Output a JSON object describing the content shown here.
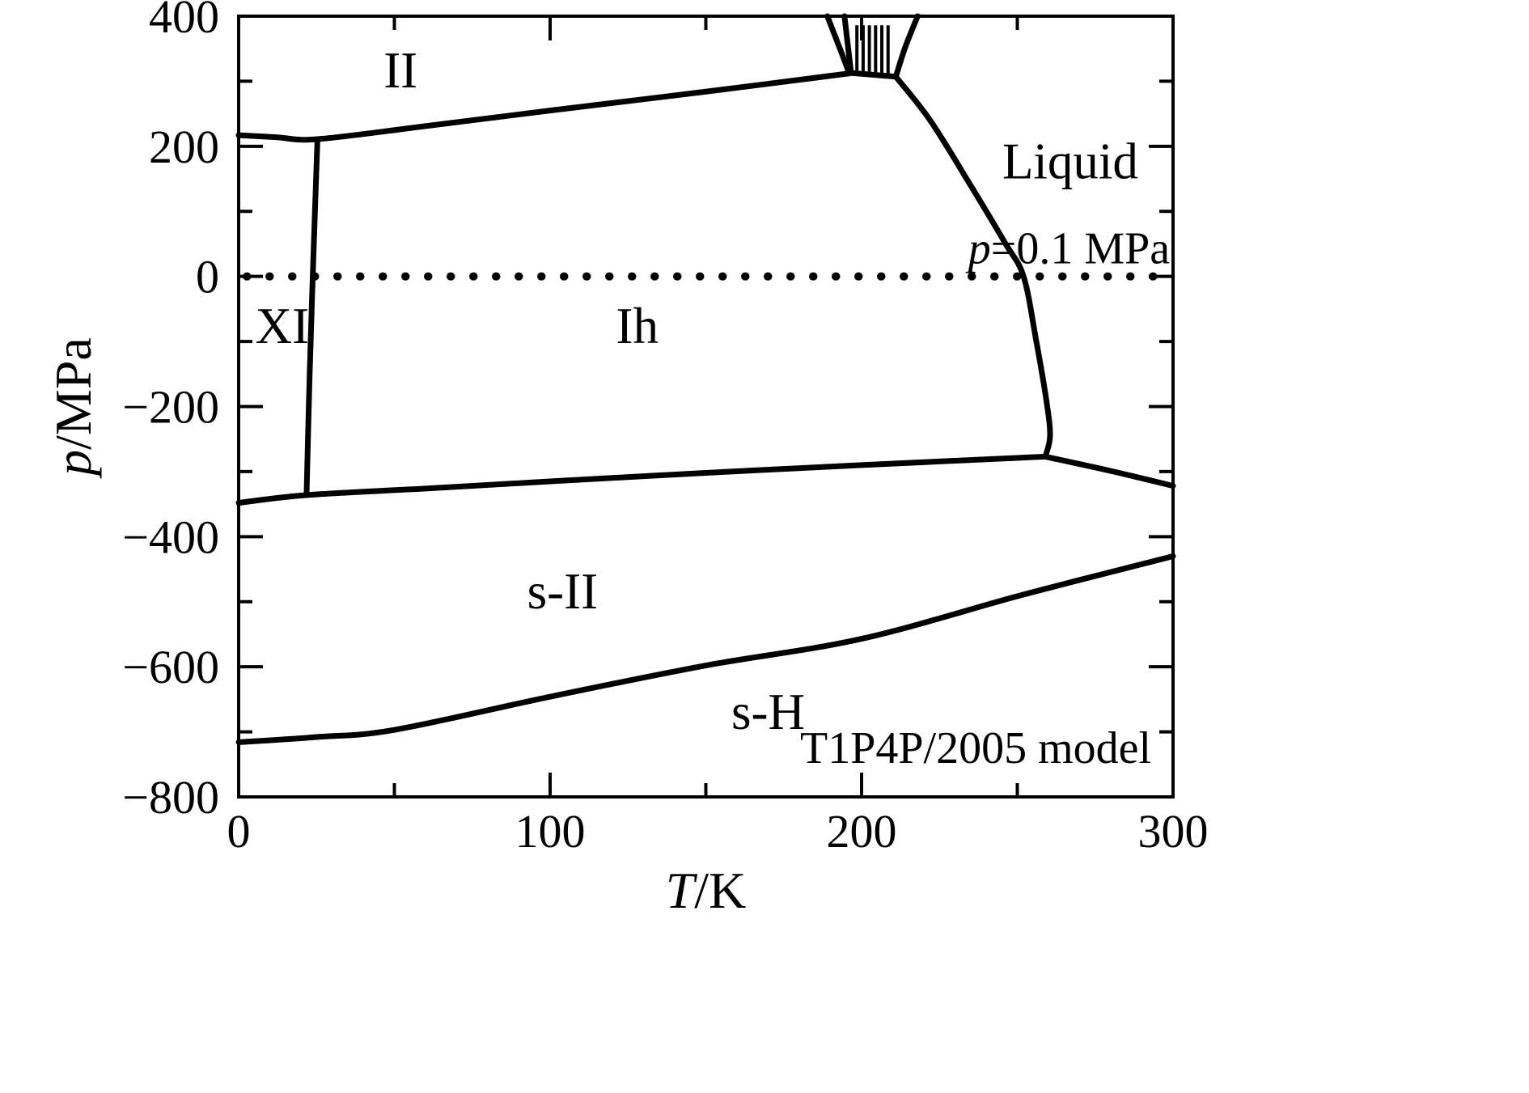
{
  "figure": {
    "kind": "water-phase-diagram",
    "background_color": "#ffffff",
    "accent_color": "#2333ee"
  },
  "chart_data": {
    "type": "line",
    "title": "",
    "xlabel_parts": [
      {
        "text": "T",
        "italic": true
      },
      {
        "text": "/K",
        "italic": false
      }
    ],
    "ylabel_parts": [
      {
        "text": "p",
        "italic": true
      },
      {
        "text": "/MPa",
        "italic": false
      }
    ],
    "xlim": [
      0,
      300
    ],
    "ylim": [
      -800,
      400
    ],
    "xticks": {
      "major": [
        0,
        100,
        200,
        300
      ],
      "labels": [
        "0",
        "100",
        "200",
        "300"
      ],
      "minor": [
        50,
        150,
        250
      ]
    },
    "yticks": {
      "major": [
        400,
        200,
        0,
        -200,
        -400,
        -600,
        -800
      ],
      "labels": [
        "400",
        "200",
        "0",
        "−200",
        "−400",
        "−600",
        "−800"
      ],
      "minor": [
        300,
        100,
        -100,
        -300,
        -500,
        -700
      ]
    },
    "line_color": "#000000",
    "line_width": 7,
    "reference_line": {
      "p": 0,
      "style": "dotted",
      "label_parts": [
        {
          "text": "p",
          "italic": true
        },
        {
          "text": "=0.1 MPa",
          "italic": false
        }
      ],
      "label_color": "#2333ee",
      "label_T": 299,
      "label_p": 20
    },
    "boundaries": [
      {
        "name": "II upper boundary",
        "points": [
          [
            0,
            217
          ],
          [
            12,
            214
          ],
          [
            25.3,
            211
          ],
          [
            60,
            231
          ],
          [
            100,
            255
          ],
          [
            150,
            284
          ],
          [
            196,
            312
          ]
        ]
      },
      {
        "name": "XI Ih boundary",
        "points": [
          [
            21.8,
            -336
          ],
          [
            22.8,
            -150
          ],
          [
            24,
            30
          ],
          [
            25.3,
            211
          ]
        ]
      },
      {
        "name": "III wedge left line",
        "points": [
          [
            189,
            400
          ],
          [
            192.5,
            357
          ],
          [
            196,
            313
          ]
        ]
      },
      {
        "name": "III wedge inner line",
        "points": [
          [
            194.5,
            400
          ],
          [
            196.5,
            318
          ]
        ]
      },
      {
        "name": "hatched region bottom",
        "points": [
          [
            196,
            313
          ],
          [
            211,
            307
          ]
        ]
      },
      {
        "name": "hatched region right line",
        "points": [
          [
            218,
            400
          ],
          [
            214,
            352
          ],
          [
            211,
            307
          ]
        ]
      },
      {
        "name": "Ih Liquid melting line",
        "points": [
          [
            211,
            307
          ],
          [
            222,
            240
          ],
          [
            235,
            140
          ],
          [
            246,
            52
          ],
          [
            252,
            0
          ],
          [
            256,
            -97
          ],
          [
            259.5,
            -196
          ],
          [
            260.5,
            -246
          ],
          [
            259,
            -277
          ]
        ]
      },
      {
        "name": "Ih s-II boundary",
        "points": [
          [
            0,
            -348
          ],
          [
            22,
            -336
          ],
          [
            60,
            -326
          ],
          [
            100,
            -315
          ],
          [
            150,
            -302
          ],
          [
            200,
            -290
          ],
          [
            259,
            -277
          ]
        ]
      },
      {
        "name": "s-II right branch",
        "points": [
          [
            259,
            -277
          ],
          [
            280,
            -299
          ],
          [
            300,
            -322
          ]
        ]
      },
      {
        "name": "s-II s-H boundary",
        "points": [
          [
            0,
            -716
          ],
          [
            25,
            -708
          ],
          [
            50,
            -697
          ],
          [
            100,
            -646
          ],
          [
            150,
            -598
          ],
          [
            200,
            -557
          ],
          [
            252,
            -489
          ],
          [
            300,
            -430
          ]
        ]
      }
    ],
    "hatch": {
      "T": [
        198.5,
        200.5,
        202.5,
        204.5,
        206.5,
        208.5
      ],
      "p_top": 386,
      "p_bottom": 310
    },
    "region_labels": [
      {
        "text": "II",
        "T": 52,
        "p": 318
      },
      {
        "text": "XI",
        "T": 14,
        "p": -75
      },
      {
        "text": "Ih",
        "T": 128,
        "p": -75
      },
      {
        "text": "Liquid",
        "T": 267,
        "p": 178
      },
      {
        "text": "s-II",
        "T": 104,
        "p": -483
      },
      {
        "text": "s-H",
        "T": 170,
        "p": -668
      }
    ],
    "annotation": {
      "text_parts": [
        {
          "text": "T1P4P/2005 model",
          "italic": false
        }
      ],
      "color": "#2333ee",
      "T": 293,
      "p": -748,
      "anchor": "end"
    }
  }
}
